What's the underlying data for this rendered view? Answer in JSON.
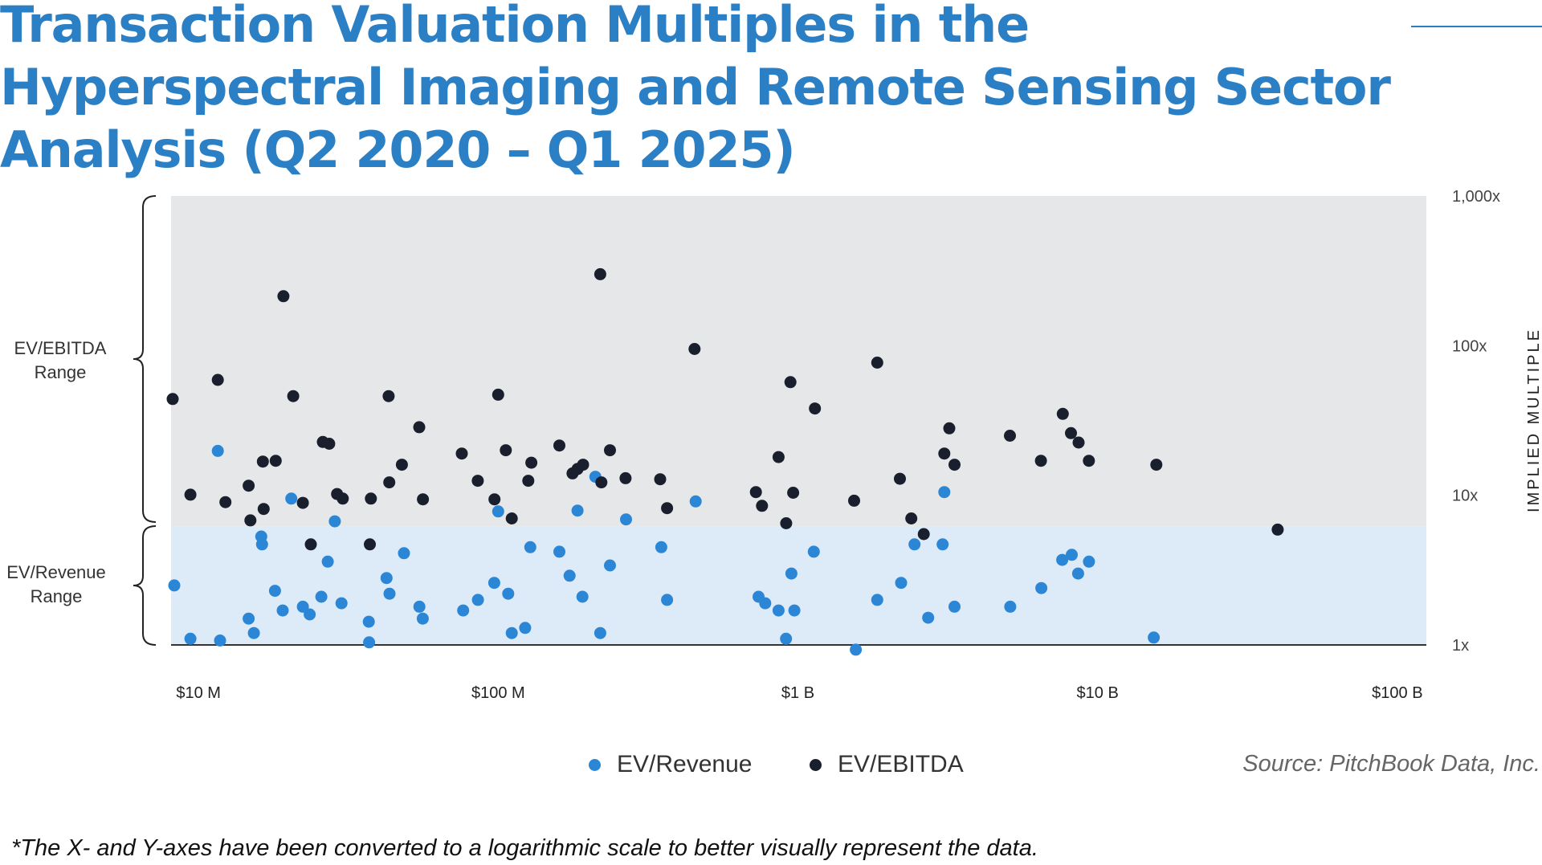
{
  "title": "Transaction Valuation Multiples in the Hyperspectral Imaging and Remote Sensing Sector Analysis (Q2 2020 – Q1 2025)",
  "ranges": {
    "ebitda_label": "EV/EBITDA\nRange",
    "revenue_label": "EV/Revenue\nRange"
  },
  "legend": {
    "revenue": "EV/Revenue",
    "ebitda": "EV/EBITDA"
  },
  "source": "Source: PitchBook Data, Inc.",
  "footnote": "*The X- and Y-axes have been converted to a logarithmic scale to better visually represent the data.",
  "colors": {
    "revenue": "#2b86d6",
    "ebitda": "#1a1f2e",
    "ebitda_band": "#e6e7e9",
    "revenue_band": "#ddebf8",
    "title": "#2b7fc4"
  },
  "chart_data": {
    "type": "scatter",
    "x_scale": "log",
    "y_scale": "log",
    "xlim": [
      8100000,
      125000000000
    ],
    "ylim": [
      1,
      1000
    ],
    "x_ticks": [
      {
        "value": 10000000,
        "label": "$10 M"
      },
      {
        "value": 100000000,
        "label": "$100 M"
      },
      {
        "value": 1000000000,
        "label": "$1 B"
      },
      {
        "value": 10000000000,
        "label": "$10 B"
      },
      {
        "value": 100000000000,
        "label": "$100 B"
      }
    ],
    "y_ticks": [
      {
        "value": 1000,
        "label": "1,000x"
      },
      {
        "value": 100,
        "label": "100x"
      },
      {
        "value": 10,
        "label": "10x"
      },
      {
        "value": 1,
        "label": "1x"
      }
    ],
    "ylabel": "IMPLIED MULTIPLE",
    "revenue_band_max": 6.2,
    "series": [
      {
        "name": "EV/Revenue",
        "points": [
          [
            8300000,
            2.5
          ],
          [
            9400000,
            1.1
          ],
          [
            11600000,
            19.8
          ],
          [
            11800000,
            1.07
          ],
          [
            14700000,
            1.5
          ],
          [
            15300000,
            1.2
          ],
          [
            16200000,
            5.3
          ],
          [
            16300000,
            4.7
          ],
          [
            18000000,
            2.3
          ],
          [
            19100000,
            1.7
          ],
          [
            20400000,
            9.5
          ],
          [
            22300000,
            1.8
          ],
          [
            23500000,
            1.6
          ],
          [
            25700000,
            2.1
          ],
          [
            27000000,
            3.6
          ],
          [
            28500000,
            6.7
          ],
          [
            30000000,
            1.9
          ],
          [
            37000000,
            1.43
          ],
          [
            37100000,
            1.04
          ],
          [
            42400000,
            2.8
          ],
          [
            43400000,
            2.2
          ],
          [
            48500000,
            4.1
          ],
          [
            54600000,
            1.8
          ],
          [
            56000000,
            1.5
          ],
          [
            76400000,
            1.7
          ],
          [
            85600000,
            2.0
          ],
          [
            97000000,
            2.6
          ],
          [
            100000000,
            7.8
          ],
          [
            108000000,
            2.2
          ],
          [
            111000000,
            1.2
          ],
          [
            123000000,
            1.3
          ],
          [
            128000000,
            4.5
          ],
          [
            160000000,
            4.2
          ],
          [
            173000000,
            2.9
          ],
          [
            184000000,
            7.9
          ],
          [
            191000000,
            2.1
          ],
          [
            211000000,
            13.3
          ],
          [
            219000000,
            1.2
          ],
          [
            236000000,
            3.4
          ],
          [
            267000000,
            6.9
          ],
          [
            350000000,
            4.5
          ],
          [
            366000000,
            2.0
          ],
          [
            456000000,
            9.1
          ],
          [
            739000000,
            2.1
          ],
          [
            778000000,
            1.9
          ],
          [
            862000000,
            1.7
          ],
          [
            913000000,
            1.1
          ],
          [
            951000000,
            3.0
          ],
          [
            973000000,
            1.7
          ],
          [
            1130000000,
            4.2
          ],
          [
            1560000000,
            0.93
          ],
          [
            1840000000,
            2.0
          ],
          [
            2210000000,
            2.6
          ],
          [
            2450000000,
            4.7
          ],
          [
            2720000000,
            1.52
          ],
          [
            3040000000,
            4.7
          ],
          [
            3080000000,
            10.5
          ],
          [
            3330000000,
            1.8
          ],
          [
            5110000000,
            1.8
          ],
          [
            6490000000,
            2.4
          ],
          [
            7620000000,
            3.7
          ],
          [
            8200000000,
            4.0
          ],
          [
            8610000000,
            3.0
          ],
          [
            9360000000,
            3.6
          ],
          [
            15400000000,
            1.12
          ]
        ]
      },
      {
        "name": "EV/EBITDA",
        "points": [
          [
            8200000,
            44
          ],
          [
            9400000,
            10.1
          ],
          [
            11600000,
            59
          ],
          [
            12300000,
            9
          ],
          [
            14700000,
            11.6
          ],
          [
            14900000,
            6.8
          ],
          [
            16400000,
            16.8
          ],
          [
            16500000,
            8.1
          ],
          [
            18100000,
            17
          ],
          [
            19200000,
            214
          ],
          [
            20700000,
            46
          ],
          [
            22300000,
            8.9
          ],
          [
            23700000,
            4.7
          ],
          [
            26000000,
            22.7
          ],
          [
            27300000,
            22.1
          ],
          [
            29000000,
            10.2
          ],
          [
            30300000,
            9.5
          ],
          [
            37300000,
            4.7
          ],
          [
            37600000,
            9.5
          ],
          [
            43100000,
            46
          ],
          [
            43300000,
            12.2
          ],
          [
            47700000,
            16
          ],
          [
            54500000,
            28.5
          ],
          [
            56100000,
            9.4
          ],
          [
            75600000,
            19
          ],
          [
            85500000,
            12.5
          ],
          [
            97200000,
            9.4
          ],
          [
            100000000,
            47
          ],
          [
            106000000,
            20
          ],
          [
            111000000,
            7
          ],
          [
            126000000,
            12.5
          ],
          [
            129000000,
            16.5
          ],
          [
            160000000,
            21.5
          ],
          [
            177000000,
            14
          ],
          [
            184000000,
            15
          ],
          [
            192000000,
            16
          ],
          [
            219000000,
            300
          ],
          [
            221000000,
            12.2
          ],
          [
            236000000,
            20
          ],
          [
            266000000,
            13
          ],
          [
            347000000,
            12.8
          ],
          [
            366000000,
            8.2
          ],
          [
            452000000,
            95
          ],
          [
            724000000,
            10.5
          ],
          [
            759000000,
            8.5
          ],
          [
            862000000,
            18
          ],
          [
            914000000,
            6.5
          ],
          [
            944000000,
            57
          ],
          [
            964000000,
            10.4
          ],
          [
            1140000000,
            38
          ],
          [
            1540000000,
            9.2
          ],
          [
            1840000000,
            77
          ],
          [
            2190000000,
            12.9
          ],
          [
            2390000000,
            7
          ],
          [
            2630000000,
            5.5
          ],
          [
            3080000000,
            19
          ],
          [
            3200000000,
            28
          ],
          [
            3330000000,
            16
          ],
          [
            5100000000,
            25
          ],
          [
            6470000000,
            17
          ],
          [
            7650000000,
            35
          ],
          [
            8150000000,
            26
          ],
          [
            8640000000,
            22.5
          ],
          [
            9350000000,
            17
          ],
          [
            15700000000,
            16
          ],
          [
            39900000000,
            5.9
          ]
        ]
      }
    ]
  }
}
